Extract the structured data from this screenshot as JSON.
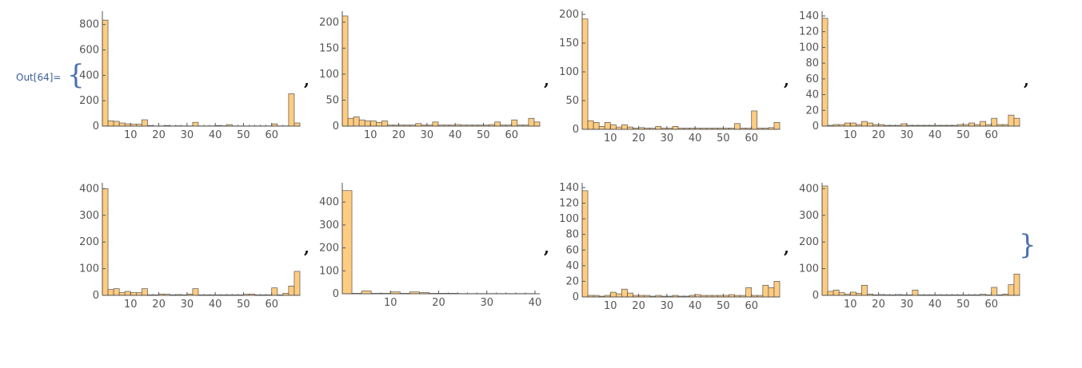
{
  "output": {
    "label": "Out[64]=",
    "open_brace": "{",
    "close_brace": "}",
    "separator": ","
  },
  "colors": {
    "bar_fill": "#ffcc80",
    "bar_stroke": "#555555",
    "axis": "#555555",
    "tick_text": "#555555"
  },
  "chart_data": [
    {
      "type": "bar",
      "xlim": [
        0,
        70
      ],
      "ylim": [
        0,
        880
      ],
      "yticks": [
        0,
        200,
        400,
        600,
        800
      ],
      "xticks": [
        10,
        20,
        30,
        40,
        50,
        60
      ],
      "bin_width": 2,
      "values": [
        835,
        42,
        38,
        25,
        18,
        15,
        15,
        50,
        5,
        2,
        2,
        5,
        2,
        3,
        2,
        2,
        30,
        2,
        2,
        2,
        5,
        3,
        12,
        2,
        2,
        2,
        2,
        2,
        2,
        2,
        18,
        2,
        2,
        255,
        25
      ]
    },
    {
      "type": "bar",
      "xlim": [
        0,
        70
      ],
      "ylim": [
        0,
        215
      ],
      "yticks": [
        0,
        50,
        100,
        150,
        200
      ],
      "xticks": [
        10,
        20,
        30,
        40,
        50,
        60
      ],
      "bin_width": 2,
      "values": [
        212,
        15,
        18,
        12,
        10,
        10,
        7,
        10,
        2,
        2,
        2,
        2,
        2,
        5,
        2,
        2,
        8,
        2,
        2,
        2,
        3,
        2,
        2,
        2,
        2,
        2,
        3,
        8,
        2,
        2,
        12,
        2,
        2,
        15,
        8
      ]
    },
    {
      "type": "bar",
      "xlim": [
        0,
        70
      ],
      "ylim": [
        0,
        200
      ],
      "yticks": [
        0,
        50,
        100,
        150,
        200
      ],
      "xticks": [
        10,
        20,
        30,
        40,
        50,
        60
      ],
      "bin_width": 2,
      "values": [
        192,
        15,
        12,
        5,
        12,
        8,
        4,
        8,
        4,
        2,
        3,
        2,
        2,
        5,
        2,
        2,
        5,
        2,
        2,
        2,
        2,
        2,
        2,
        2,
        2,
        2,
        2,
        10,
        2,
        2,
        32,
        2,
        2,
        3,
        12
      ]
    },
    {
      "type": "bar",
      "xlim": [
        0,
        70
      ],
      "ylim": [
        0,
        142
      ],
      "yticks": [
        0,
        20,
        40,
        60,
        80,
        100,
        120,
        140
      ],
      "xticks": [
        10,
        20,
        30,
        40,
        50,
        60
      ],
      "bin_width": 2,
      "values": [
        137,
        1,
        2,
        2,
        4,
        4,
        2,
        6,
        4,
        2,
        2,
        1,
        1,
        1,
        3,
        1,
        1,
        1,
        1,
        1,
        1,
        1,
        1,
        1,
        2,
        2,
        4,
        2,
        6,
        2,
        10,
        2,
        2,
        14,
        10
      ]
    },
    {
      "type": "bar",
      "xlim": [
        0,
        70
      ],
      "ylim": [
        0,
        410
      ],
      "yticks": [
        0,
        100,
        200,
        300,
        400
      ],
      "xticks": [
        10,
        20,
        30,
        40,
        50,
        60
      ],
      "bin_width": 2,
      "values": [
        400,
        22,
        25,
        10,
        15,
        10,
        10,
        25,
        2,
        2,
        5,
        4,
        2,
        3,
        2,
        5,
        25,
        2,
        2,
        2,
        2,
        2,
        2,
        2,
        2,
        4,
        5,
        2,
        2,
        2,
        28,
        2,
        8,
        35,
        90
      ]
    },
    {
      "type": "bar",
      "xlim": [
        0,
        41
      ],
      "ylim": [
        0,
        470
      ],
      "yticks": [
        0,
        100,
        200,
        300,
        400
      ],
      "xticks": [
        10,
        20,
        30,
        40
      ],
      "bin_width": 2,
      "values": [
        450,
        2,
        12,
        2,
        2,
        8,
        2,
        8,
        5,
        2,
        2,
        2,
        1,
        1,
        1,
        1,
        1,
        1,
        1,
        1
      ]
    },
    {
      "type": "bar",
      "xlim": [
        0,
        70
      ],
      "ylim": [
        0,
        142
      ],
      "yticks": [
        0,
        20,
        40,
        60,
        80,
        100,
        120,
        140
      ],
      "xticks": [
        10,
        20,
        30,
        40,
        50,
        60
      ],
      "bin_width": 2,
      "values": [
        136,
        2,
        2,
        1,
        2,
        6,
        4,
        10,
        5,
        2,
        2,
        2,
        1,
        2,
        1,
        1,
        2,
        1,
        1,
        2,
        3,
        2,
        2,
        2,
        2,
        2,
        3,
        2,
        2,
        12,
        2,
        2,
        15,
        12,
        20
      ]
    },
    {
      "type": "bar",
      "xlim": [
        0,
        70
      ],
      "ylim": [
        0,
        410
      ],
      "yticks": [
        0,
        100,
        200,
        300,
        400
      ],
      "xticks": [
        10,
        20,
        30,
        40,
        50,
        60
      ],
      "bin_width": 2,
      "values": [
        410,
        15,
        20,
        10,
        4,
        12,
        8,
        38,
        5,
        2,
        3,
        2,
        2,
        3,
        2,
        2,
        20,
        2,
        2,
        2,
        2,
        2,
        2,
        2,
        2,
        2,
        2,
        2,
        4,
        2,
        30,
        2,
        5,
        40,
        80
      ]
    }
  ]
}
